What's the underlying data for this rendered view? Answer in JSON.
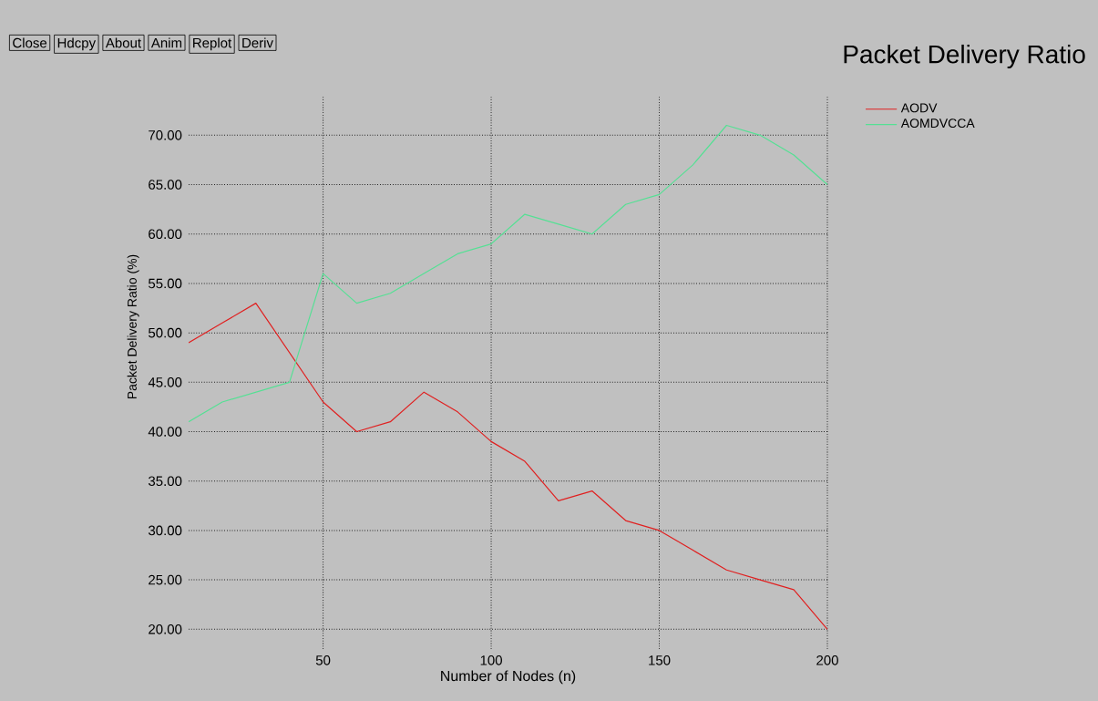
{
  "chart_data": {
    "type": "line",
    "title": "Packet Delivery Ratio",
    "xlabel": "Number of Nodes (n)",
    "ylabel": "Packet Delivery Ratio (%)",
    "annotations": [
      "Close",
      "Hdcpy",
      "About",
      "Anim",
      "Replot",
      "Deriv"
    ],
    "x": [
      10,
      20,
      30,
      40,
      50,
      60,
      70,
      80,
      90,
      100,
      110,
      120,
      130,
      140,
      150,
      160,
      170,
      180,
      190,
      200
    ],
    "series": [
      {
        "name": "AODV",
        "color": "#e02020",
        "values": [
          49,
          51,
          53,
          48,
          43,
          40,
          41,
          44,
          42,
          39,
          37,
          33,
          34,
          31,
          30,
          28,
          26,
          25,
          24,
          20
        ]
      },
      {
        "name": "AOMDVCCA",
        "color": "#55e094",
        "values": [
          41,
          43,
          44,
          45,
          56,
          53,
          54,
          56,
          58,
          59,
          62,
          61,
          60,
          63,
          64,
          67,
          71,
          70,
          68,
          65
        ]
      }
    ],
    "xlim": [
      10,
      200
    ],
    "ylim": [
      18,
      74
    ],
    "xticks": [
      50,
      100,
      150,
      200
    ],
    "yticks": [
      {
        "value": 20,
        "label": "20.00"
      },
      {
        "value": 25,
        "label": "25.00"
      },
      {
        "value": 30,
        "label": "30.00"
      },
      {
        "value": 35,
        "label": "35.00"
      },
      {
        "value": 40,
        "label": "40.00"
      },
      {
        "value": 45,
        "label": "45.00"
      },
      {
        "value": 50,
        "label": "50.00"
      },
      {
        "value": 55,
        "label": "55.00"
      },
      {
        "value": 60,
        "label": "60.00"
      },
      {
        "value": 65,
        "label": "65.00"
      },
      {
        "value": 70,
        "label": "70.00"
      }
    ],
    "grid": true,
    "legend": "top right",
    "marker": "none",
    "line_style": "solid"
  }
}
